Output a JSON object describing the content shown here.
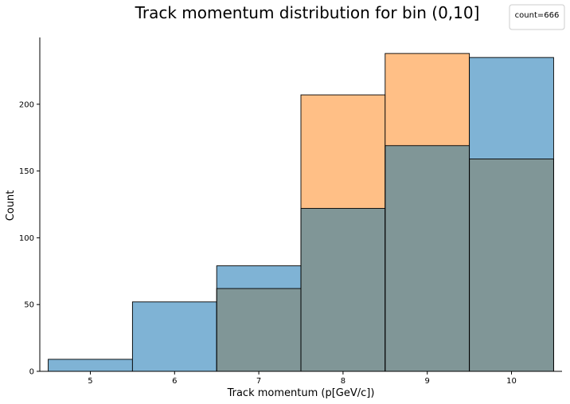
{
  "chart_data": {
    "type": "bar",
    "title": "Track momentum distribution for bin (0,10]",
    "xlabel": "Track momentum (p[GeV/c])",
    "ylabel": "Count",
    "x_ticks": [
      "5",
      "6",
      "7",
      "8",
      "9",
      "10"
    ],
    "y_ticks": [
      0,
      50,
      100,
      150,
      200
    ],
    "xlim": [
      4.4,
      10.6
    ],
    "ylim": [
      0,
      250
    ],
    "bin_width": 1,
    "legend": {
      "placement": "top-right",
      "text": "count=666"
    },
    "series": [
      {
        "color": "#7fb3d5",
        "bins": [
          {
            "center": 5,
            "value": 9
          },
          {
            "center": 6,
            "value": 52
          },
          {
            "center": 7,
            "value": 79
          },
          {
            "center": 8,
            "value": 122
          },
          {
            "center": 9,
            "value": 169
          },
          {
            "center": 10,
            "value": 235
          }
        ]
      },
      {
        "color": "#ffbf86",
        "bins": [
          {
            "center": 7,
            "value": 62
          },
          {
            "center": 8,
            "value": 207
          },
          {
            "center": 9,
            "value": 238
          },
          {
            "center": 10,
            "value": 159
          }
        ]
      }
    ],
    "overlap_color": "#809697",
    "grid": false
  }
}
